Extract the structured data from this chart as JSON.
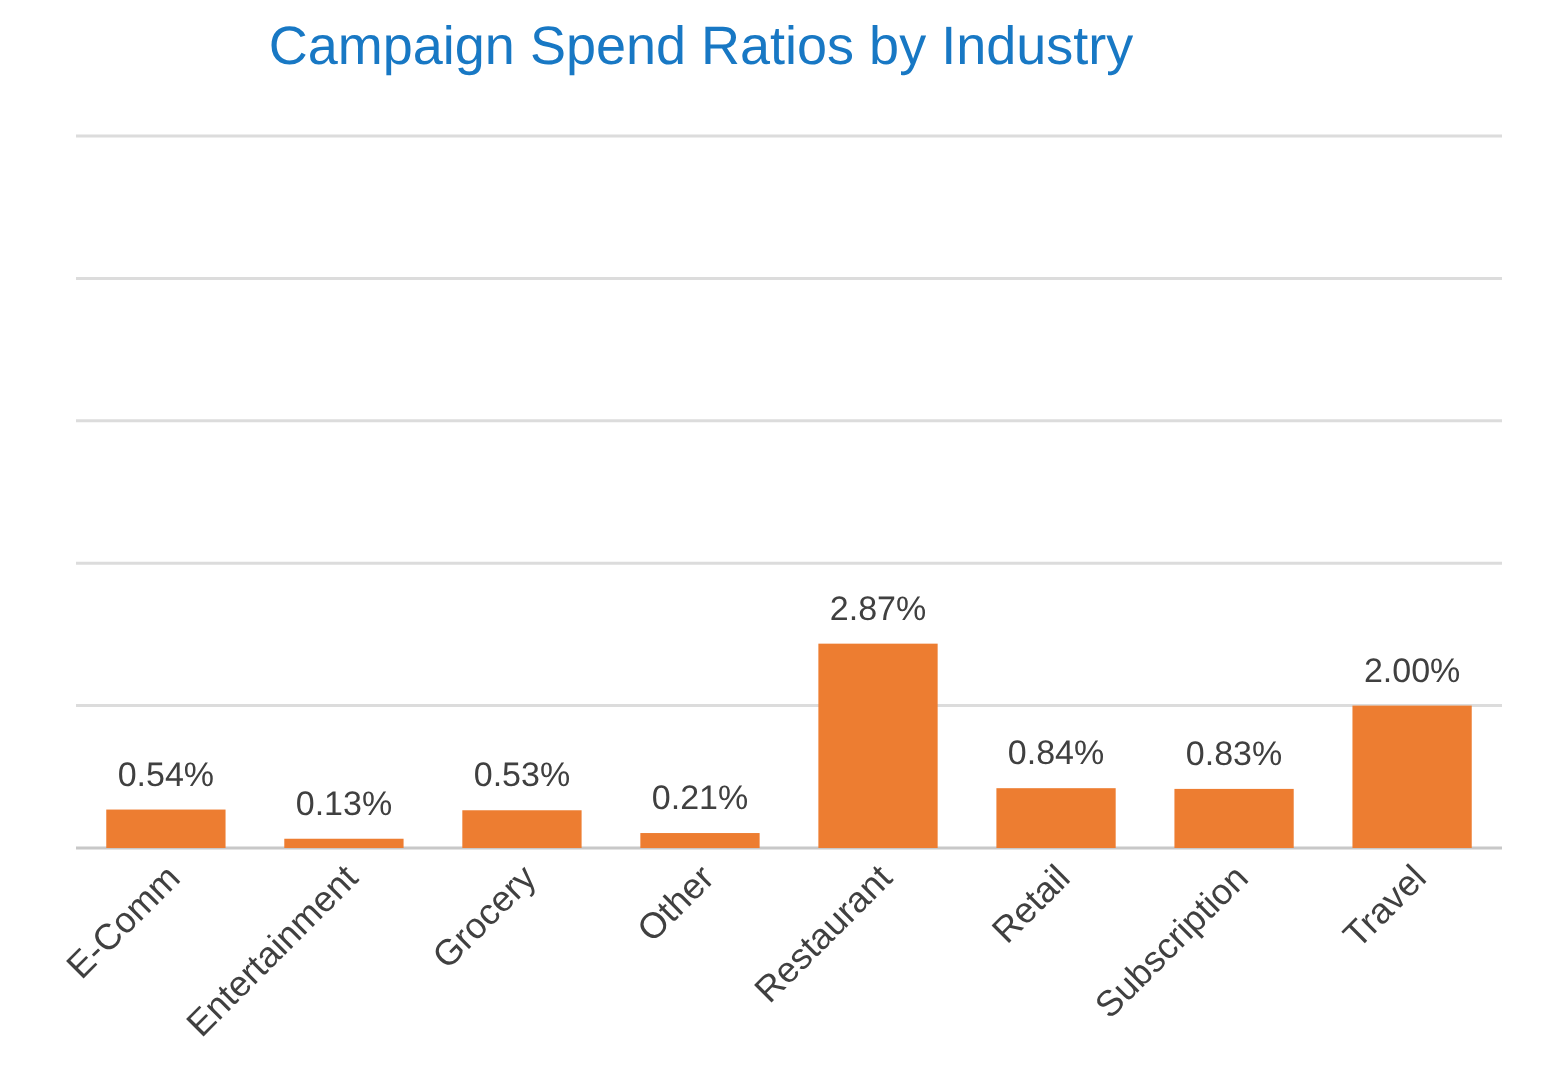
{
  "chart_data": {
    "type": "bar",
    "title": "Campaign Spend Ratios by Industry",
    "categories": [
      "E-Comm",
      "Entertainment",
      "Grocery",
      "Other",
      "Restaurant",
      "Retail",
      "Subscription",
      "Travel"
    ],
    "values": [
      0.54,
      0.13,
      0.53,
      0.21,
      2.87,
      0.84,
      0.83,
      2.0
    ],
    "value_labels": [
      "0.54%",
      "0.13%",
      "0.53%",
      "0.21%",
      "2.87%",
      "0.84%",
      "0.83%",
      "2.00%"
    ],
    "color": "#ed7d31",
    "ylim": [
      0,
      10
    ],
    "yticks": [
      {
        "value": 0,
        "label": null
      },
      {
        "value": 2,
        "label": null
      },
      {
        "value": 4,
        "label": null
      },
      {
        "value": 6,
        "label": null
      },
      {
        "value": 8,
        "label": null
      },
      {
        "value": 10,
        "label": null
      }
    ],
    "grid": "y",
    "tick_labels": "x"
  }
}
